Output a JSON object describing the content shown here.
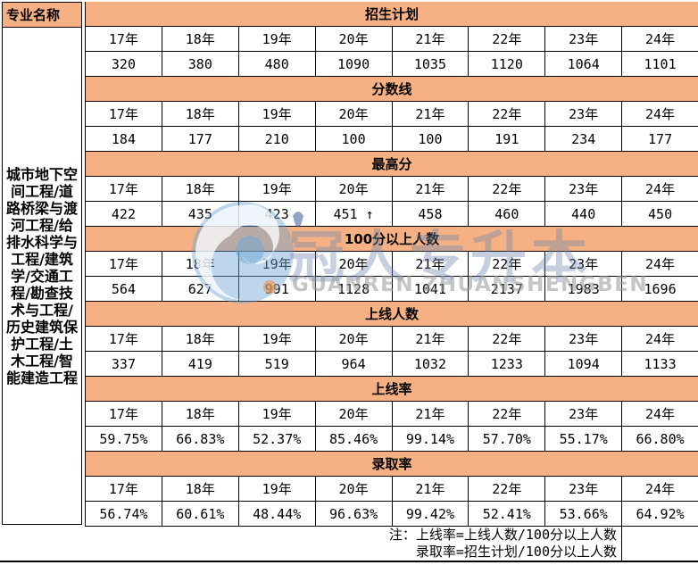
{
  "left_panel": {
    "header": "专业名称",
    "major_names": "城市地下空间工程/道路桥梁与渡河工程/给排水科学与工程/建筑学/交通工程/勘查技术与工程/历史建筑保护工程/土木工程/智能建造工程"
  },
  "chart_data": {
    "type": "table",
    "row_header": "专业名称",
    "row_label": "城市地下空间工程/道路桥梁与渡河工程/给排水科学与工程/建筑学/交通工程/勘查技术与工程/历史建筑保护工程/土木工程/智能建造工程",
    "columns": [
      "17年",
      "18年",
      "19年",
      "20年",
      "21年",
      "22年",
      "23年",
      "24年"
    ],
    "sections": [
      {
        "label": "招生计划",
        "values": [
          "320",
          "380",
          "480",
          "1090",
          "1035",
          "1120",
          "1064",
          "1101"
        ]
      },
      {
        "label": "分数线",
        "values": [
          "184",
          "177",
          "210",
          "100",
          "100",
          "191",
          "234",
          "177"
        ]
      },
      {
        "label": "最高分",
        "values": [
          "422",
          "435",
          "423",
          "451 ↑",
          "458",
          "460",
          "440",
          "450"
        ]
      },
      {
        "label": "100分以上人数",
        "values": [
          "564",
          "627",
          "991",
          "1128",
          "1041",
          "2137",
          "1983",
          "1696"
        ]
      },
      {
        "label": "上线人数",
        "values": [
          "337",
          "419",
          "519",
          "964",
          "1032",
          "1233",
          "1094",
          "1133"
        ]
      },
      {
        "label": "上线率",
        "values": [
          "59.75%",
          "66.83%",
          "52.37%",
          "85.46%",
          "99.14%",
          "57.70%",
          "55.17%",
          "66.80%"
        ]
      },
      {
        "label": "录取率",
        "values": [
          "56.74%",
          "60.61%",
          "48.44%",
          "96.63%",
          "99.42%",
          "52.41%",
          "53.66%",
          "64.92%"
        ]
      }
    ]
  },
  "notes": {
    "line1": "注：上线率=上线人数/100分以上人数",
    "line2": "录取率=招生计划/100分以上人数"
  },
  "watermark": {
    "cn": "冠人专升本",
    "en": "GUANREN ZHUANSHENGBEN"
  },
  "colors": {
    "band_orange": "#F5B183",
    "border_black": "#000000",
    "watermark_blue": "#6E87AF",
    "watermark_gray": "#969696",
    "watermark_logo_blue": "#6EA5D2",
    "watermark_dot_orange": "#EB9146"
  }
}
